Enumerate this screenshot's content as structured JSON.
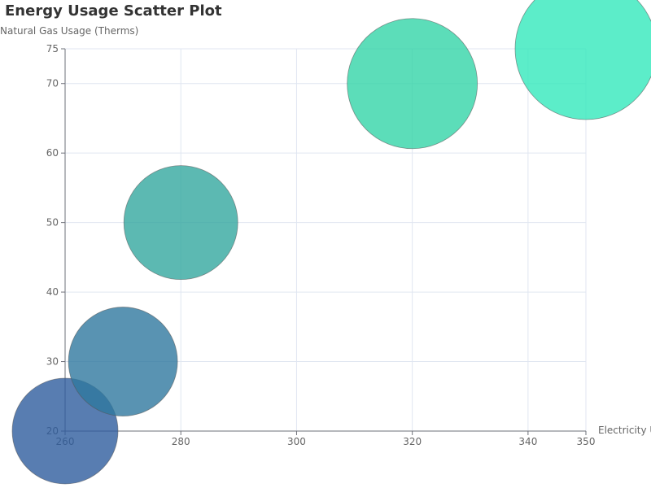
{
  "chart_data": {
    "type": "scatter",
    "title": "Energy Usage Scatter Plot",
    "xlabel": "Electricity U",
    "ylabel": "Natural Gas Usage (Therms)",
    "xlim": [
      260,
      350
    ],
    "ylim": [
      20,
      75
    ],
    "x_ticks": [
      260,
      280,
      300,
      320,
      340,
      350
    ],
    "y_ticks": [
      20,
      30,
      40,
      50,
      60,
      70,
      75
    ],
    "grid": true,
    "colors": {
      "grid": "#e0e6f1",
      "axis": "#6e7079",
      "text": "#666666",
      "title": "#333333",
      "bubble_low": "#2e5c9e",
      "bubble_high": "#3ee8c0"
    },
    "points": [
      {
        "x": 260,
        "y": 20,
        "size": 65,
        "color": "#2e5c9e"
      },
      {
        "x": 270,
        "y": 30,
        "size": 67,
        "color": "#2f789f"
      },
      {
        "x": 280,
        "y": 50,
        "size": 70,
        "color": "#33a89f"
      },
      {
        "x": 320,
        "y": 70,
        "size": 80,
        "color": "#33d4a8"
      },
      {
        "x": 350,
        "y": 75,
        "size": 87,
        "color": "#33e8bc"
      }
    ]
  }
}
